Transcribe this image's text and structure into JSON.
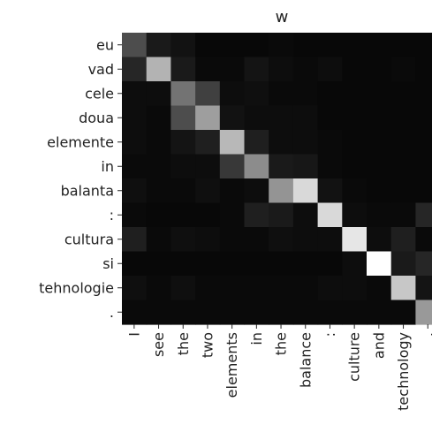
{
  "chart_data": {
    "type": "heatmap",
    "title": "w",
    "xlabel": "",
    "ylabel": "",
    "x_labels": [
      "I",
      "see",
      "the",
      "two",
      "elements",
      "in",
      "the",
      "balance",
      ":",
      "culture",
      "and",
      "technology",
      "."
    ],
    "y_labels": [
      "eu",
      "vad",
      "cele",
      "doua",
      "elemente",
      "in",
      "balanta",
      ":",
      "cultura",
      "si",
      "tehnologie",
      "."
    ],
    "colormap": "gray",
    "value_range": [
      0,
      1
    ],
    "grid": false,
    "values": [
      [
        0.3,
        0.1,
        0.07,
        0.03,
        0.03,
        0.03,
        0.04,
        0.03,
        0.03,
        0.03,
        0.03,
        0.03,
        0.03
      ],
      [
        0.15,
        0.7,
        0.1,
        0.04,
        0.04,
        0.08,
        0.05,
        0.04,
        0.05,
        0.03,
        0.03,
        0.04,
        0.03
      ],
      [
        0.05,
        0.05,
        0.45,
        0.25,
        0.05,
        0.06,
        0.04,
        0.04,
        0.03,
        0.03,
        0.03,
        0.03,
        0.03
      ],
      [
        0.05,
        0.04,
        0.3,
        0.62,
        0.07,
        0.05,
        0.05,
        0.05,
        0.03,
        0.03,
        0.03,
        0.03,
        0.03
      ],
      [
        0.05,
        0.04,
        0.08,
        0.12,
        0.72,
        0.12,
        0.05,
        0.05,
        0.04,
        0.03,
        0.03,
        0.03,
        0.03
      ],
      [
        0.04,
        0.04,
        0.05,
        0.05,
        0.22,
        0.55,
        0.1,
        0.09,
        0.04,
        0.03,
        0.03,
        0.03,
        0.03
      ],
      [
        0.06,
        0.04,
        0.04,
        0.06,
        0.04,
        0.05,
        0.58,
        0.85,
        0.07,
        0.04,
        0.03,
        0.03,
        0.03
      ],
      [
        0.04,
        0.03,
        0.03,
        0.03,
        0.04,
        0.12,
        0.1,
        0.05,
        0.85,
        0.05,
        0.04,
        0.04,
        0.15
      ],
      [
        0.12,
        0.04,
        0.06,
        0.05,
        0.04,
        0.04,
        0.06,
        0.05,
        0.05,
        0.9,
        0.05,
        0.12,
        0.04
      ],
      [
        0.03,
        0.03,
        0.03,
        0.03,
        0.03,
        0.03,
        0.03,
        0.03,
        0.03,
        0.05,
        1.0,
        0.1,
        0.15
      ],
      [
        0.06,
        0.04,
        0.06,
        0.04,
        0.04,
        0.04,
        0.04,
        0.04,
        0.05,
        0.05,
        0.04,
        0.78,
        0.08
      ],
      [
        0.04,
        0.04,
        0.04,
        0.04,
        0.04,
        0.04,
        0.04,
        0.04,
        0.04,
        0.04,
        0.04,
        0.04,
        0.6
      ]
    ]
  }
}
